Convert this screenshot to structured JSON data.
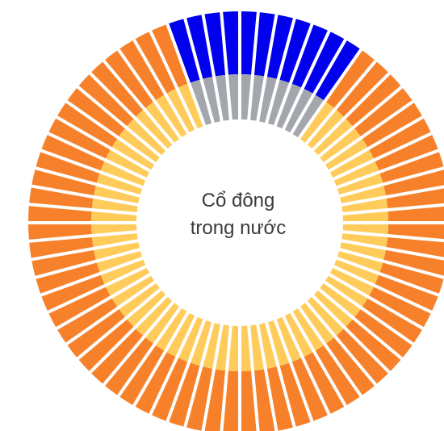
{
  "chart_data": {
    "type": "pie",
    "center_label": {
      "line1": "Cổ đông",
      "line2": "trong nước"
    },
    "segment_count": 72,
    "start_angle_deg": -20,
    "rings": [
      {
        "ring": "outer",
        "series": [
          {
            "color": "#0000ee",
            "segments": 11
          },
          {
            "color": "#f6812a",
            "segments": 61
          }
        ]
      },
      {
        "ring": "inner",
        "series": [
          {
            "color": "#a4a6ad",
            "segments": 11
          },
          {
            "color": "#ffcc5c",
            "segments": 61
          }
        ]
      }
    ],
    "gap_color": "#ffffff",
    "legend": "none"
  }
}
